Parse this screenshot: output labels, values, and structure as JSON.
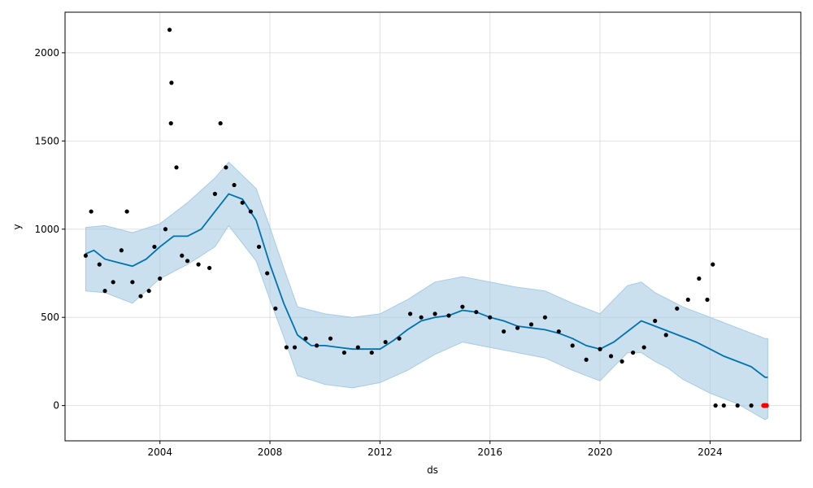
{
  "chart_data": {
    "type": "line",
    "xlabel": "ds",
    "ylabel": "y",
    "xlim": [
      2000.55,
      2027.3
    ],
    "ylim": [
      -200,
      2230
    ],
    "x_ticks": [
      2004,
      2008,
      2012,
      2016,
      2020,
      2024
    ],
    "x_tick_labels": [
      "2004",
      "2008",
      "2012",
      "2016",
      "2020",
      "2024"
    ],
    "y_ticks": [
      0,
      500,
      1000,
      1500,
      2000
    ],
    "y_tick_labels": [
      "0",
      "500",
      "1000",
      "1500",
      "2000"
    ],
    "grid": true,
    "colors": {
      "forecast_line": "#0072B2",
      "uncertainty_band": "#A6CBE3",
      "observed_points": "#000000",
      "outlier_points": "#FF0000"
    },
    "series": [
      {
        "role": "forecast",
        "x": [
          2001.3,
          2001.6,
          2002.0,
          2002.5,
          2003.0,
          2003.5,
          2004.0,
          2004.5,
          2005.0,
          2005.5,
          2006.0,
          2006.5,
          2007.0,
          2007.5,
          2008.0,
          2008.5,
          2009.0,
          2009.5,
          2010.0,
          2010.5,
          2011.0,
          2011.5,
          2012.0,
          2012.5,
          2013.0,
          2013.5,
          2014.0,
          2014.5,
          2015.0,
          2015.5,
          2016.0,
          2016.5,
          2017.0,
          2017.5,
          2018.0,
          2018.5,
          2019.0,
          2019.5,
          2020.0,
          2020.5,
          2021.0,
          2021.5,
          2022.0,
          2022.5,
          2023.0,
          2023.5,
          2024.0,
          2024.5,
          2025.0,
          2025.5,
          2026.0,
          2026.1
        ],
        "y": [
          860,
          880,
          830,
          810,
          790,
          830,
          900,
          960,
          960,
          1000,
          1100,
          1200,
          1170,
          1050,
          800,
          580,
          400,
          340,
          340,
          330,
          320,
          320,
          320,
          370,
          430,
          480,
          500,
          510,
          540,
          530,
          500,
          480,
          450,
          440,
          430,
          410,
          380,
          340,
          320,
          360,
          420,
          480,
          450,
          420,
          390,
          360,
          320,
          280,
          250,
          220,
          160,
          160
        ]
      },
      {
        "role": "uncertainty_upper",
        "x": [
          2001.3,
          2002.0,
          2003.0,
          2004.0,
          2005.0,
          2006.0,
          2006.5,
          2007.5,
          2008.0,
          2008.5,
          2009.0,
          2010.0,
          2011.0,
          2012.0,
          2013.0,
          2014.0,
          2015.0,
          2016.0,
          2017.0,
          2018.0,
          2019.0,
          2020.0,
          2020.5,
          2021.0,
          2021.5,
          2022.0,
          2022.5,
          2023.0,
          2024.0,
          2025.0,
          2026.0,
          2026.1
        ],
        "y": [
          1010,
          1020,
          980,
          1030,
          1150,
          1290,
          1380,
          1230,
          1010,
          780,
          560,
          520,
          500,
          520,
          600,
          700,
          730,
          700,
          670,
          650,
          580,
          520,
          600,
          680,
          700,
          640,
          600,
          560,
          500,
          440,
          380,
          380
        ]
      },
      {
        "role": "uncertainty_lower",
        "x": [
          2001.3,
          2002.0,
          2003.0,
          2004.0,
          2005.0,
          2006.0,
          2006.5,
          2007.5,
          2008.0,
          2008.5,
          2009.0,
          2010.0,
          2011.0,
          2012.0,
          2013.0,
          2014.0,
          2015.0,
          2016.0,
          2017.0,
          2018.0,
          2019.0,
          2020.0,
          2020.5,
          2021.0,
          2021.5,
          2022.0,
          2022.5,
          2023.0,
          2024.0,
          2025.0,
          2026.0,
          2026.1
        ],
        "y": [
          650,
          640,
          580,
          720,
          800,
          900,
          1020,
          820,
          600,
          390,
          170,
          120,
          100,
          130,
          200,
          290,
          360,
          330,
          300,
          270,
          200,
          140,
          220,
          300,
          300,
          250,
          210,
          150,
          70,
          10,
          -80,
          -70
        ]
      },
      {
        "role": "observed",
        "x": [
          2001.3,
          2001.5,
          2001.8,
          2002.0,
          2002.3,
          2002.6,
          2002.8,
          2003.0,
          2003.3,
          2003.6,
          2003.8,
          2004.0,
          2004.2,
          2004.4,
          2004.6,
          2004.8,
          2005.0,
          2005.4,
          2005.8,
          2006.0,
          2006.2,
          2006.4,
          2006.7,
          2007.0,
          2007.3,
          2007.6,
          2007.9,
          2008.2,
          2008.6,
          2008.9,
          2009.3,
          2009.7,
          2010.2,
          2010.7,
          2011.2,
          2011.7,
          2012.2,
          2012.7,
          2013.1,
          2013.5,
          2014.0,
          2014.5,
          2015.0,
          2015.5,
          2016.0,
          2016.5,
          2017.0,
          2017.5,
          2018.0,
          2018.5,
          2019.0,
          2019.5,
          2020.0,
          2020.4,
          2020.8,
          2021.2,
          2021.6,
          2022.0,
          2022.4,
          2022.8,
          2023.2,
          2023.6,
          2023.9,
          2024.1,
          2024.2,
          2024.5,
          2025.0,
          2025.5,
          2026.0
        ],
        "y": [
          850,
          1100,
          800,
          650,
          700,
          880,
          1100,
          700,
          620,
          650,
          900,
          720,
          1000,
          1600,
          1350,
          850,
          820,
          800,
          780,
          1200,
          1600,
          1350,
          1250,
          1150,
          1100,
          900,
          750,
          550,
          330,
          330,
          380,
          340,
          380,
          300,
          330,
          300,
          360,
          380,
          520,
          500,
          520,
          510,
          560,
          530,
          500,
          420,
          440,
          460,
          500,
          420,
          340,
          260,
          320,
          280,
          250,
          300,
          330,
          480,
          400,
          550,
          600,
          720,
          600,
          800,
          0,
          0,
          0,
          0,
          0
        ]
      },
      {
        "role": "observed_outliers",
        "x": [
          2004.35,
          2004.42
        ],
        "y": [
          2130,
          1830
        ]
      },
      {
        "role": "forecast_markers_red",
        "x": [
          2025.95,
          2026.0,
          2026.05
        ],
        "y": [
          0,
          0,
          0
        ]
      }
    ]
  }
}
